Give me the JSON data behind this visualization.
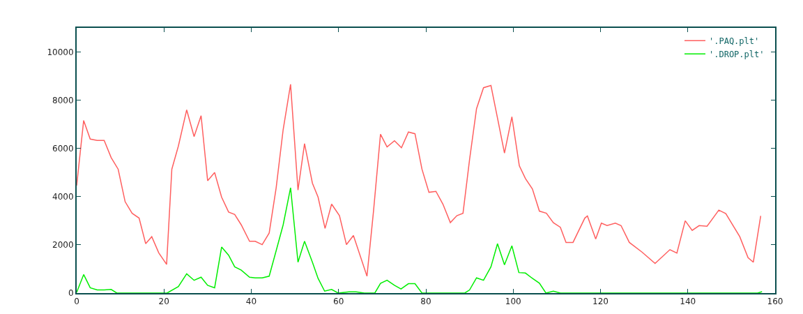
{
  "chart_data": {
    "type": "line",
    "xlim": [
      0,
      160
    ],
    "xticks": [
      0,
      20,
      40,
      60,
      80,
      100,
      120,
      140,
      160
    ],
    "ylim": [
      0,
      11000
    ],
    "yticks": [
      0,
      2000,
      4000,
      6000,
      8000,
      10000
    ],
    "grid": false,
    "legend": "top right",
    "marker": "none",
    "line_style": "solid",
    "series": [
      {
        "name": "'.PAQ.plt'",
        "color": "#ff5f5f",
        "x": [
          0,
          1.6,
          3.1,
          4.7,
          6.3,
          7.9,
          9.5,
          11.1,
          12.7,
          14.3,
          15.8,
          17.2,
          18.8,
          20.6,
          21.8,
          23.3,
          25.2,
          26.9,
          28.5,
          30,
          31.6,
          33.2,
          34.8,
          36.2,
          37.7,
          39.6,
          40.9,
          42.5,
          44.1,
          45.7,
          47.3,
          49,
          50.7,
          52.2,
          54,
          55.3,
          56.9,
          58.4,
          60.2,
          61.8,
          63.4,
          66.5,
          68,
          69.6,
          71.1,
          72.8,
          74.4,
          76,
          77.5,
          79.1,
          80.7,
          82.3,
          83.9,
          85.6,
          87.1,
          88.5,
          90,
          91.6,
          93.2,
          94.9,
          96.4,
          98,
          99.7,
          101.4,
          102.8,
          104.4,
          106,
          107.6,
          109.2,
          110.8,
          112.1,
          113.7,
          116.4,
          117,
          118.9,
          120.2,
          121.5,
          123.4,
          124.7,
          126.6,
          129.5,
          132.5,
          135.9,
          137.5,
          139.4,
          141,
          142.6,
          144.4,
          147.1,
          148.7,
          151.9,
          153.8,
          155,
          156.7
        ],
        "values": [
          4460,
          7160,
          6390,
          6330,
          6330,
          5620,
          5140,
          3790,
          3310,
          3110,
          2050,
          2340,
          1670,
          1190,
          5140,
          6100,
          7600,
          6490,
          7360,
          4660,
          5000,
          3980,
          3360,
          3260,
          2830,
          2150,
          2150,
          2010,
          2490,
          4370,
          6780,
          8660,
          4270,
          6200,
          4560,
          3980,
          2680,
          3690,
          3210,
          2010,
          2390,
          700,
          3400,
          6590,
          6060,
          6320,
          6030,
          6680,
          6610,
          5140,
          4180,
          4220,
          3690,
          2920,
          3210,
          3310,
          5530,
          7650,
          8520,
          8610,
          7260,
          5810,
          7310,
          5280,
          4750,
          4320,
          3400,
          3310,
          2920,
          2730,
          2100,
          2100,
          3110,
          3200,
          2240,
          2900,
          2800,
          2900,
          2800,
          2100,
          1700,
          1230,
          1800,
          1660,
          3000,
          2600,
          2800,
          2770,
          3440,
          3300,
          2340,
          1470,
          1280,
          3200
        ]
      },
      {
        "name": "'.DROP.plt'",
        "color": "#00ee00",
        "x": [
          0,
          1.6,
          3.1,
          4.7,
          6.3,
          7.9,
          9.2,
          20.7,
          23.3,
          25.2,
          26.9,
          28.5,
          30,
          31.6,
          33.2,
          34.8,
          36.2,
          37.7,
          39.6,
          40.9,
          42.5,
          44.1,
          45.7,
          47.3,
          49,
          50.7,
          52.2,
          54,
          55.3,
          56.8,
          58.4,
          59.9,
          62.4,
          64,
          65.9,
          68.3,
          69.6,
          71.1,
          72.8,
          74.3,
          76,
          77.5,
          79.1,
          88.9,
          90,
          91.6,
          93.2,
          94.9,
          96.4,
          98,
          99.7,
          101.3,
          102.8,
          104.4,
          106,
          107.5,
          109.2,
          110.8,
          156,
          157
        ],
        "values": [
          30,
          770,
          220,
          130,
          130,
          150,
          0,
          0,
          270,
          800,
          530,
          660,
          320,
          220,
          1910,
          1570,
          1090,
          950,
          660,
          630,
          630,
          700,
          1760,
          2830,
          4370,
          1280,
          2150,
          1280,
          610,
          80,
          150,
          0,
          50,
          50,
          0,
          0,
          400,
          530,
          320,
          170,
          390,
          390,
          0,
          0,
          130,
          630,
          530,
          1090,
          2050,
          1170,
          1960,
          850,
          830,
          610,
          410,
          0,
          80,
          0,
          0,
          60
        ]
      }
    ]
  }
}
